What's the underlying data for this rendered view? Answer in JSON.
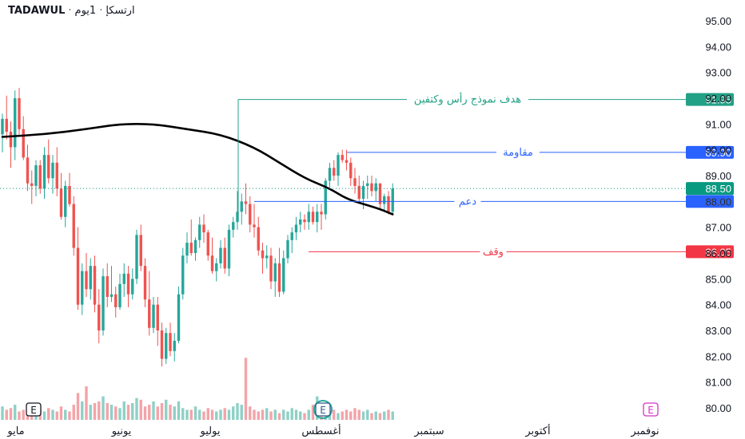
{
  "header": {
    "symbol": "TADAWUL",
    "name": "ارتسكإ",
    "interval": "1يوم",
    "sep": "·"
  },
  "colors": {
    "up": "#26a69a",
    "down": "#ef5350",
    "vol_up": "#8fd0c6",
    "vol_down": "#f3a4a9",
    "ma": "#000000",
    "target": "#22a186",
    "resistance": "#2962ff",
    "support": "#2962ff",
    "stop": "#f23645",
    "last": "#089981",
    "event": "#d633c9"
  },
  "chart_data": {
    "type": "candlestick",
    "y_range": [
      79.6,
      95.6
    ],
    "y_ticks": [
      "95.00",
      "94.00",
      "93.00",
      "92.00",
      "91.00",
      "90.00",
      "89.00",
      "88.00",
      "87.00",
      "86.00",
      "85.00",
      "84.00",
      "83.00",
      "82.00",
      "81.00",
      "80.00"
    ],
    "x_labels": [
      "مايو",
      "يونيو",
      "يوليو",
      "أغسطس",
      "سبتمبر",
      "أكتوبر",
      "نوفمبر"
    ],
    "last_price": "88.50",
    "levels": [
      {
        "key": "target",
        "label": "هدف نموذج رأس وكتفين",
        "value": 91.95,
        "value_text": "91.95"
      },
      {
        "key": "resistance",
        "label": "مقاومة",
        "value": 89.9,
        "value_text": "89.90"
      },
      {
        "key": "support",
        "label": "دعم",
        "value": 88.0,
        "value_text": "88.00"
      },
      {
        "key": "stop",
        "label": "وقف",
        "value": 86.05,
        "value_text": "86.05"
      }
    ],
    "earnings_markers": [
      "E",
      "E",
      "E"
    ],
    "candles": [
      [
        90.6,
        91.4,
        89.9,
        91.2
      ],
      [
        91.2,
        92.1,
        90.4,
        90.7
      ],
      [
        90.7,
        91.1,
        89.3,
        90.1
      ],
      [
        90.1,
        92.3,
        89.6,
        92.0
      ],
      [
        92.0,
        92.4,
        90.5,
        90.8
      ],
      [
        90.8,
        91.3,
        89.6,
        89.7
      ],
      [
        89.7,
        90.2,
        88.4,
        88.7
      ],
      [
        88.7,
        89.2,
        87.9,
        88.6
      ],
      [
        88.6,
        89.6,
        88.2,
        89.4
      ],
      [
        89.4,
        89.6,
        88.3,
        88.5
      ],
      [
        88.5,
        90.1,
        88.1,
        89.8
      ],
      [
        89.8,
        90.4,
        88.7,
        88.9
      ],
      [
        88.9,
        89.8,
        88.3,
        89.5
      ],
      [
        89.5,
        90.1,
        88.2,
        88.5
      ],
      [
        88.5,
        89.1,
        87.3,
        87.4
      ],
      [
        87.4,
        88.8,
        87.0,
        88.6
      ],
      [
        88.6,
        89.1,
        87.8,
        87.9
      ],
      [
        87.9,
        88.2,
        85.9,
        86.2
      ],
      [
        86.2,
        87.0,
        83.8,
        84.0
      ],
      [
        84.0,
        85.6,
        83.6,
        85.3
      ],
      [
        85.3,
        86.0,
        84.3,
        84.6
      ],
      [
        84.6,
        85.8,
        84.2,
        85.5
      ],
      [
        85.5,
        85.9,
        83.7,
        84.0
      ],
      [
        84.0,
        84.6,
        82.5,
        83.0
      ],
      [
        83.0,
        85.4,
        82.8,
        85.1
      ],
      [
        85.1,
        85.6,
        83.9,
        84.3
      ],
      [
        84.3,
        85.5,
        84.1,
        84.4
      ],
      [
        84.4,
        84.7,
        83.5,
        83.9
      ],
      [
        83.9,
        85.2,
        83.8,
        84.8
      ],
      [
        84.8,
        85.6,
        84.3,
        85.2
      ],
      [
        85.2,
        85.5,
        83.9,
        84.4
      ],
      [
        84.4,
        85.4,
        84.2,
        85.0
      ],
      [
        85.0,
        86.9,
        84.8,
        86.7
      ],
      [
        86.7,
        87.1,
        85.3,
        85.5
      ],
      [
        85.5,
        85.8,
        83.9,
        84.2
      ],
      [
        84.2,
        85.3,
        82.8,
        83.1
      ],
      [
        83.1,
        84.3,
        82.9,
        84.0
      ],
      [
        84.0,
        84.3,
        82.4,
        83.0
      ],
      [
        83.0,
        83.3,
        81.6,
        81.9
      ],
      [
        81.9,
        83.1,
        81.7,
        82.9
      ],
      [
        82.9,
        83.3,
        82.0,
        82.2
      ],
      [
        82.2,
        82.9,
        81.8,
        82.6
      ],
      [
        82.6,
        84.7,
        82.5,
        84.4
      ],
      [
        84.4,
        86.2,
        84.2,
        85.9
      ],
      [
        85.9,
        86.8,
        85.6,
        86.4
      ],
      [
        86.4,
        87.3,
        85.9,
        86.0
      ],
      [
        86.0,
        86.6,
        85.7,
        86.5
      ],
      [
        86.5,
        87.4,
        86.2,
        87.1
      ],
      [
        87.1,
        87.5,
        86.4,
        86.8
      ],
      [
        86.8,
        86.9,
        85.7,
        85.9
      ],
      [
        85.9,
        86.6,
        85.2,
        85.3
      ],
      [
        85.3,
        85.8,
        84.9,
        85.6
      ],
      [
        85.6,
        86.5,
        85.4,
        86.2
      ],
      [
        86.2,
        86.6,
        85.2,
        85.4
      ],
      [
        85.4,
        87.1,
        85.1,
        86.9
      ],
      [
        86.9,
        87.4,
        86.6,
        87.2
      ],
      [
        87.2,
        88.4,
        86.9,
        87.6
      ],
      [
        87.6,
        88.3,
        87.1,
        88.0
      ],
      [
        88.0,
        88.7,
        87.5,
        87.9
      ],
      [
        87.9,
        88.2,
        86.8,
        87.1
      ],
      [
        87.1,
        87.9,
        86.6,
        87.0
      ],
      [
        87.0,
        87.4,
        85.9,
        86.1
      ],
      [
        86.1,
        86.4,
        85.2,
        85.8
      ],
      [
        85.8,
        86.3,
        85.4,
        85.9
      ],
      [
        85.9,
        86.2,
        84.6,
        84.9
      ],
      [
        84.9,
        85.8,
        84.3,
        85.6
      ],
      [
        85.6,
        86.2,
        84.3,
        84.5
      ],
      [
        84.5,
        86.1,
        84.4,
        85.8
      ],
      [
        85.8,
        86.7,
        85.6,
        86.5
      ],
      [
        86.5,
        87.0,
        86.0,
        86.8
      ],
      [
        86.8,
        87.4,
        86.5,
        87.1
      ],
      [
        87.1,
        87.6,
        86.8,
        87.3
      ],
      [
        87.3,
        87.5,
        86.9,
        87.2
      ],
      [
        87.2,
        87.9,
        86.9,
        87.6
      ],
      [
        87.6,
        87.8,
        87.1,
        87.2
      ],
      [
        87.2,
        87.9,
        86.8,
        87.6
      ],
      [
        87.6,
        87.9,
        86.9,
        87.5
      ],
      [
        87.5,
        88.9,
        87.3,
        88.8
      ],
      [
        88.8,
        89.5,
        88.5,
        89.3
      ],
      [
        89.3,
        89.6,
        88.8,
        89.0
      ],
      [
        89.0,
        89.9,
        88.6,
        89.8
      ],
      [
        89.8,
        90.0,
        89.5,
        89.6
      ],
      [
        89.6,
        90.0,
        89.2,
        89.5
      ],
      [
        89.5,
        89.7,
        88.6,
        88.9
      ],
      [
        88.9,
        89.3,
        88.3,
        88.6
      ],
      [
        88.6,
        89.0,
        87.9,
        88.1
      ],
      [
        88.1,
        88.8,
        87.7,
        88.6
      ],
      [
        88.6,
        89.0,
        88.1,
        88.7
      ],
      [
        88.7,
        89.0,
        88.2,
        88.4
      ],
      [
        88.4,
        88.9,
        88.0,
        88.7
      ],
      [
        88.7,
        88.7,
        87.7,
        87.9
      ],
      [
        87.9,
        88.3,
        87.6,
        88.2
      ],
      [
        88.2,
        88.4,
        87.5,
        87.6
      ],
      [
        87.6,
        88.7,
        87.5,
        88.5
      ]
    ],
    "volume": [
      0.8,
      0.6,
      0.7,
      0.9,
      0.5,
      0.6,
      0.8,
      0.7,
      0.5,
      0.6,
      0.5,
      0.7,
      0.6,
      0.5,
      0.8,
      0.6,
      0.5,
      0.9,
      1.6,
      1.1,
      2.0,
      0.9,
      1.0,
      1.1,
      1.4,
      1.0,
      0.9,
      0.8,
      0.7,
      1.1,
      0.9,
      1.0,
      1.3,
      1.2,
      0.8,
      0.9,
      1.1,
      0.8,
      1.0,
      1.2,
      0.9,
      0.8,
      1.1,
      0.7,
      0.6,
      0.6,
      0.8,
      0.6,
      0.5,
      0.7,
      0.6,
      0.5,
      0.6,
      0.7,
      0.6,
      0.8,
      1.0,
      0.9,
      3.7,
      0.8,
      0.6,
      0.5,
      0.6,
      0.7,
      0.5,
      0.6,
      0.4,
      0.6,
      0.5,
      0.7,
      0.6,
      0.5,
      0.4,
      0.6,
      0.9,
      1.4,
      0.7,
      0.6,
      0.5,
      0.6,
      0.4,
      0.5,
      0.6,
      0.5,
      0.7,
      0.6,
      0.5,
      0.6,
      0.4,
      0.5,
      0.4,
      0.5,
      0.6,
      0.5
    ],
    "ma_curve": [
      [
        0,
        90.5
      ],
      [
        10,
        90.6
      ],
      [
        20,
        90.8
      ],
      [
        28,
        91.0
      ],
      [
        36,
        91.0
      ],
      [
        44,
        90.8
      ],
      [
        52,
        90.6
      ],
      [
        60,
        90.1
      ],
      [
        66,
        89.5
      ],
      [
        72,
        88.9
      ],
      [
        78,
        88.5
      ],
      [
        82,
        88.1
      ],
      [
        86,
        87.9
      ],
      [
        90,
        87.7
      ],
      [
        93,
        87.5
      ]
    ]
  }
}
